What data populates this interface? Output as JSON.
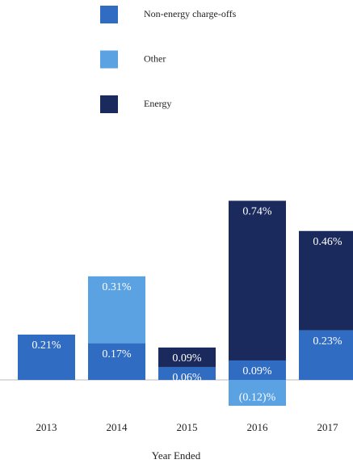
{
  "chart_data": {
    "type": "stacked-bar",
    "x_label": "Year Ended",
    "categories": [
      "2013",
      "2014",
      "2015",
      "2016",
      "2017"
    ],
    "series": [
      {
        "name": "Non-energy charge-offs",
        "color": "#2f6cc2",
        "values": [
          0.21,
          0.17,
          0.06,
          0.09,
          0.23
        ],
        "value_labels": [
          "0.21%",
          "0.17%",
          "0.06%",
          "0.09%",
          "0.23%"
        ]
      },
      {
        "name": "Other",
        "color": "#5ba2e2",
        "values": [
          null,
          0.31,
          null,
          -0.12,
          null
        ],
        "value_labels": [
          null,
          "0.31%",
          null,
          "(0.12)%",
          null
        ]
      },
      {
        "name": "Energy",
        "color": "#1b2a5c",
        "values": [
          null,
          null,
          0.09,
          0.74,
          0.46
        ],
        "value_labels": [
          null,
          null,
          "0.09%",
          "0.74%",
          "0.46%"
        ]
      }
    ]
  }
}
